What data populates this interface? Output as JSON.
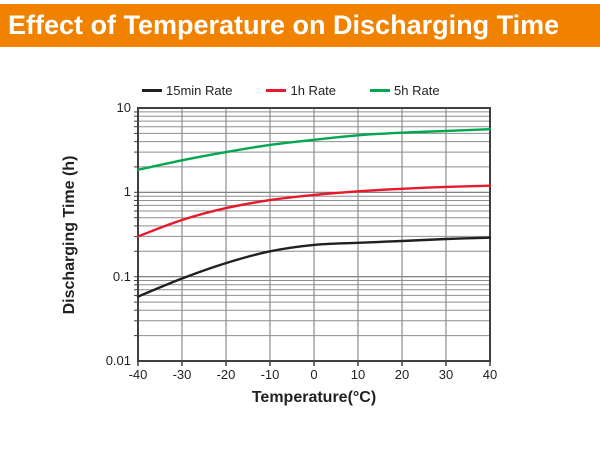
{
  "header": {
    "title": "Effect of Temperature on Discharging Time",
    "bar_color": "#F08200",
    "text_color": "#FFFFFF"
  },
  "chart_data": {
    "type": "line",
    "title": "Effect of Temperature on Discharging Time",
    "xlabel": "Temperature(°C)",
    "ylabel": "Discharging Time (h)",
    "xlim": [
      -40,
      40
    ],
    "ylim": [
      0.01,
      10
    ],
    "yscale": "log",
    "grid": "major and minor log grid on",
    "legend_position": "top",
    "x": [
      -40,
      -30,
      -20,
      -10,
      0,
      10,
      20,
      30,
      40
    ],
    "xticks": [
      -40,
      -30,
      -20,
      -10,
      0,
      10,
      20,
      30,
      40
    ],
    "yticks": [
      10,
      1,
      0.1,
      0.01
    ],
    "ytick_labels": [
      "10",
      "1",
      "0.1",
      "0.01"
    ],
    "series": [
      {
        "name": "15min Rate",
        "color": "#231f20",
        "values": [
          0.058,
          0.095,
          0.145,
          0.2,
          0.238,
          0.252,
          0.265,
          0.28,
          0.29
        ]
      },
      {
        "name": "1h Rate",
        "color": "#E8192C",
        "values": [
          0.3,
          0.47,
          0.65,
          0.81,
          0.93,
          1.03,
          1.1,
          1.16,
          1.2
        ]
      },
      {
        "name": "5h Rate",
        "color": "#00A650",
        "values": [
          1.85,
          2.4,
          3.0,
          3.65,
          4.2,
          4.75,
          5.1,
          5.35,
          5.6
        ]
      }
    ],
    "grid_minor_color": "#8e8e8e",
    "grid_major_color": "#6e6e6e",
    "frame_color": "#3f3f3f"
  }
}
